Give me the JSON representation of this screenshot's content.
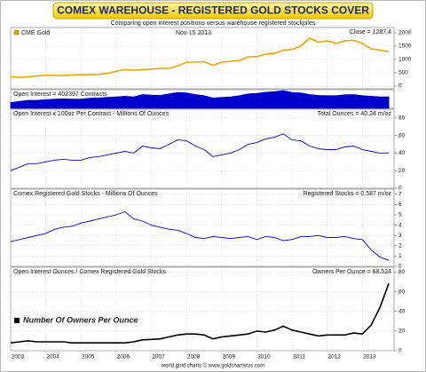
{
  "header": {
    "title": "COMEX WAREHOUSE - REGISTERED GOLD STOCKS COVER",
    "subtitle": "Comparing open interest positions versus warehouse registered stockpiles",
    "footer": "world gold charts © www.goldchartsrus.com"
  },
  "chart_data": [
    {
      "type": "line",
      "annotation": "Nov-15 2013",
      "label_right": "Close = 1287.4",
      "legend": "top-left",
      "x": [
        2003,
        2003.25,
        2003.5,
        2003.75,
        2004,
        2004.25,
        2004.5,
        2004.75,
        2005,
        2005.25,
        2005.5,
        2005.75,
        2006,
        2006.25,
        2006.5,
        2006.75,
        2007,
        2007.25,
        2007.5,
        2007.75,
        2008,
        2008.25,
        2008.5,
        2008.75,
        2009,
        2009.25,
        2009.5,
        2009.75,
        2010,
        2010.25,
        2010.5,
        2010.75,
        2011,
        2011.25,
        2011.5,
        2011.75,
        2012,
        2012.25,
        2012.5,
        2012.75,
        2013,
        2013.25,
        2013.5,
        2013.75
      ],
      "series": [
        {
          "name": "CME Gold",
          "color": "#f0a500",
          "values": [
            350,
            330,
            350,
            380,
            410,
            400,
            400,
            420,
            430,
            430,
            440,
            480,
            560,
            620,
            600,
            620,
            640,
            660,
            670,
            760,
            900,
            900,
            920,
            780,
            900,
            930,
            960,
            1100,
            1110,
            1200,
            1230,
            1350,
            1380,
            1500,
            1800,
            1650,
            1700,
            1600,
            1700,
            1720,
            1600,
            1400,
            1350,
            1290
          ]
        }
      ],
      "ylim": [
        -100,
        2200
      ],
      "yticks": [
        0,
        500,
        1000,
        1500,
        2000
      ]
    },
    {
      "type": "area",
      "label_left": "Open Interest = 402397 Contracts",
      "x": [
        2003,
        2003.25,
        2003.5,
        2003.75,
        2004,
        2004.25,
        2004.5,
        2004.75,
        2005,
        2005.25,
        2005.5,
        2005.75,
        2006,
        2006.25,
        2006.5,
        2006.75,
        2007,
        2007.25,
        2007.5,
        2007.75,
        2008,
        2008.25,
        2008.5,
        2008.75,
        2009,
        2009.25,
        2009.5,
        2009.75,
        2010,
        2010.25,
        2010.5,
        2010.75,
        2011,
        2011.25,
        2011.5,
        2011.75,
        2012,
        2012.25,
        2012.5,
        2012.75,
        2013,
        2013.25,
        2013.5,
        2013.75
      ],
      "series": [
        {
          "name": "Open Interest",
          "color": "#0000cc",
          "values": [
            200000,
            240000,
            280000,
            280000,
            300000,
            320000,
            330000,
            320000,
            320000,
            350000,
            360000,
            380000,
            400000,
            420000,
            400000,
            480000,
            460000,
            450000,
            500000,
            550000,
            540000,
            480000,
            440000,
            360000,
            380000,
            400000,
            440000,
            500000,
            520000,
            560000,
            580000,
            620000,
            550000,
            540000,
            480000,
            450000,
            440000,
            440000,
            470000,
            480000,
            440000,
            420000,
            400000,
            402397
          ]
        }
      ],
      "ylim": [
        0,
        650000
      ]
    },
    {
      "type": "line",
      "label_left": "Open Interest x 100oz Per Contract - Millions Of Ounces",
      "label_right": "Total Ounces = 40.24 m/oz",
      "x": [
        2003,
        2003.25,
        2003.5,
        2003.75,
        2004,
        2004.25,
        2004.5,
        2004.75,
        2005,
        2005.25,
        2005.5,
        2005.75,
        2006,
        2006.25,
        2006.5,
        2006.75,
        2007,
        2007.25,
        2007.5,
        2007.75,
        2008,
        2008.25,
        2008.5,
        2008.75,
        2009,
        2009.25,
        2009.5,
        2009.75,
        2010,
        2010.25,
        2010.5,
        2010.75,
        2011,
        2011.25,
        2011.5,
        2011.75,
        2012,
        2012.25,
        2012.5,
        2012.75,
        2013,
        2013.25,
        2013.5,
        2013.75
      ],
      "series": [
        {
          "name": "Total Ounces",
          "color": "#0000dd",
          "values": [
            20,
            24,
            28,
            28,
            30,
            32,
            33,
            32,
            32,
            35,
            36,
            38,
            40,
            42,
            40,
            48,
            46,
            45,
            50,
            55,
            54,
            48,
            44,
            36,
            38,
            40,
            44,
            50,
            52,
            56,
            58,
            62,
            55,
            54,
            48,
            45,
            44,
            44,
            47,
            48,
            44,
            42,
            40,
            40.24
          ]
        }
      ],
      "ylim": [
        0,
        90
      ],
      "yticks": [
        0,
        20,
        40,
        60,
        80
      ]
    },
    {
      "type": "line",
      "label_left": "Comex Registered Gold Stocks - Millions Of Ounces",
      "label_right": "Registered Stocks = 0.587 m/oz",
      "x": [
        2003,
        2003.25,
        2003.5,
        2003.75,
        2004,
        2004.25,
        2004.5,
        2004.75,
        2005,
        2005.25,
        2005.5,
        2005.75,
        2006,
        2006.25,
        2006.5,
        2006.75,
        2007,
        2007.25,
        2007.5,
        2007.75,
        2008,
        2008.25,
        2008.5,
        2008.75,
        2009,
        2009.25,
        2009.5,
        2009.75,
        2010,
        2010.25,
        2010.5,
        2010.75,
        2011,
        2011.25,
        2011.5,
        2011.75,
        2012,
        2012.25,
        2012.5,
        2012.75,
        2013,
        2013.25,
        2013.5,
        2013.75
      ],
      "series": [
        {
          "name": "Registered Stocks",
          "color": "#0000dd",
          "values": [
            2.4,
            2.6,
            2.8,
            3.0,
            3.2,
            3.6,
            3.8,
            3.9,
            4.2,
            4.4,
            4.6,
            4.8,
            5.0,
            5.3,
            4.6,
            4.4,
            4.0,
            3.8,
            3.6,
            3.5,
            3.2,
            2.8,
            2.7,
            2.9,
            2.8,
            2.7,
            2.8,
            2.9,
            2.6,
            2.9,
            2.8,
            2.5,
            2.6,
            2.9,
            2.9,
            3.0,
            2.8,
            2.8,
            2.9,
            2.7,
            2.6,
            1.6,
            0.9,
            0.587
          ]
        }
      ],
      "ylim": [
        0,
        7.5
      ],
      "yticks": [
        0,
        1,
        2,
        3,
        4,
        5,
        6,
        7
      ]
    },
    {
      "type": "line",
      "label_left": "Open Interest Ounces / Comex Registered Gold Stocks",
      "label_right": "Owners Per Ounce = 68.524",
      "legend": "bottom-left",
      "x": [
        2003,
        2003.25,
        2003.5,
        2003.75,
        2004,
        2004.25,
        2004.5,
        2004.75,
        2005,
        2005.25,
        2005.5,
        2005.75,
        2006,
        2006.25,
        2006.5,
        2006.75,
        2007,
        2007.25,
        2007.5,
        2007.75,
        2008,
        2008.25,
        2008.5,
        2008.75,
        2009,
        2009.25,
        2009.5,
        2009.75,
        2010,
        2010.25,
        2010.5,
        2010.75,
        2011,
        2011.25,
        2011.5,
        2011.75,
        2012,
        2012.25,
        2012.5,
        2012.75,
        2013,
        2013.25,
        2013.5,
        2013.75
      ],
      "series": [
        {
          "name": "Number Of Owners Per Ounce",
          "color": "#000000",
          "values": [
            8,
            9,
            10,
            9,
            9,
            9,
            9,
            8,
            8,
            8,
            8,
            8,
            8,
            8,
            9,
            11,
            11.5,
            12,
            14,
            16,
            17,
            17,
            16,
            12,
            14,
            15,
            16,
            17,
            20,
            19,
            21,
            25,
            21,
            19,
            17,
            15,
            16,
            16,
            16,
            18,
            17,
            26,
            44,
            68.524
          ]
        }
      ],
      "ylim": [
        0,
        85
      ],
      "yticks": [
        0,
        20,
        40,
        60,
        80
      ],
      "xlim": [
        2003,
        2013.9
      ],
      "xticks": [
        2003,
        2004,
        2005,
        2006,
        2007,
        2008,
        2009,
        2010,
        2011,
        2012,
        2013
      ]
    }
  ]
}
